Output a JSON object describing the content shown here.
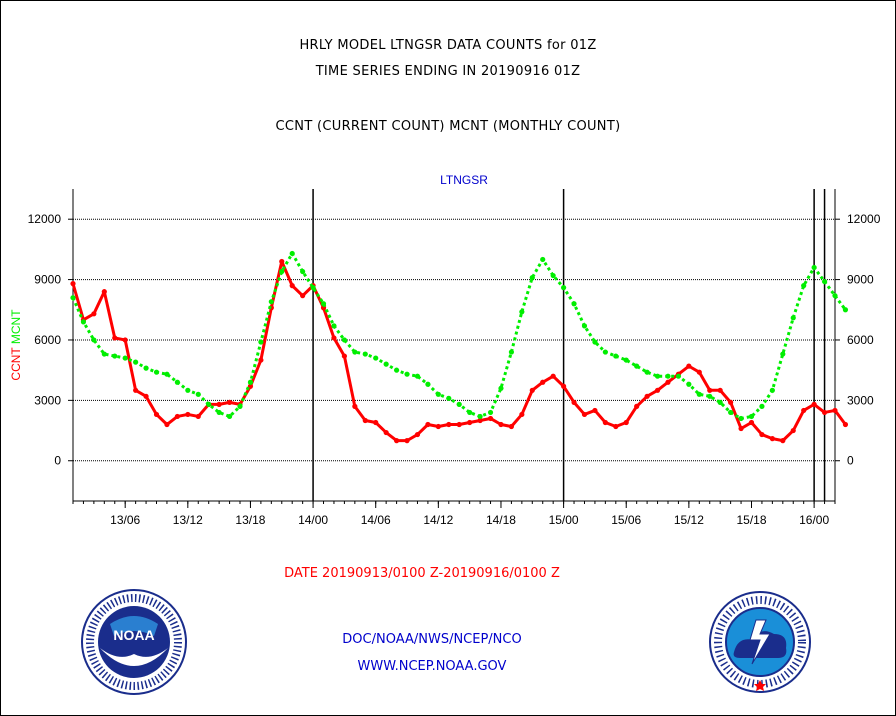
{
  "header": {
    "title_line1": "HRLY MODEL LTNGSR DATA COUNTS for 01Z",
    "title_line2": "TIME SERIES ENDING IN 20190916 01Z",
    "title_line3": "CCNT (CURRENT COUNT) MCNT (MONTHLY COUNT)"
  },
  "footer": {
    "date_range": "DATE 20190913/0100 Z-20190916/0100 Z",
    "credit": "DOC/NOAA/NWS/NCEP/NCO",
    "url": "WWW.NCEP.NOAA.GOV"
  },
  "logos": {
    "left": "noaa-emblem",
    "right": "national-weather-service-emblem"
  },
  "chart_data": {
    "type": "line",
    "title": "LTNGSR",
    "ylabel_left_ccnt": "CCNT",
    "ylabel_left_mcnt": "MCNT",
    "ylim": [
      -2000,
      13500
    ],
    "xlim_hours": [
      0,
      73
    ],
    "yticks": [
      0,
      3000,
      6000,
      9000,
      12000
    ],
    "ytick_labels": [
      "0",
      "3000",
      "6000",
      "9000",
      "12000"
    ],
    "xticks": [
      {
        "hour": 5,
        "label": "13/06"
      },
      {
        "hour": 11,
        "label": "13/12"
      },
      {
        "hour": 17,
        "label": "13/18"
      },
      {
        "hour": 23,
        "label": "14/00"
      },
      {
        "hour": 29,
        "label": "14/06"
      },
      {
        "hour": 35,
        "label": "14/12"
      },
      {
        "hour": 41,
        "label": "14/18"
      },
      {
        "hour": 47,
        "label": "15/00"
      },
      {
        "hour": 53,
        "label": "15/06"
      },
      {
        "hour": 59,
        "label": "15/12"
      },
      {
        "hour": 65,
        "label": "15/18"
      },
      {
        "hour": 71,
        "label": "16/00"
      }
    ],
    "day_boundaries_hours": [
      23,
      47,
      71,
      72
    ],
    "grid": true,
    "colors": {
      "ccnt": "#ff0000",
      "mcnt": "#00ee00",
      "title": "#0000cc",
      "axis": "#000000"
    },
    "series": [
      {
        "name": "CCNT",
        "style": "solid",
        "values": [
          8800,
          7000,
          7300,
          8400,
          6100,
          6000,
          3500,
          3200,
          2300,
          1800,
          2200,
          2300,
          2200,
          2800,
          2800,
          2900,
          2800,
          3700,
          5000,
          7600,
          9900,
          8700,
          8200,
          8700,
          7600,
          6100,
          5200,
          2700,
          2000,
          1900,
          1400,
          1000,
          1000,
          1300,
          1800,
          1700,
          1800,
          1800,
          1900,
          2000,
          2100,
          1800,
          1700,
          2300,
          3500,
          3900,
          4200,
          3700,
          2900,
          2300,
          2500,
          1900,
          1700,
          1900,
          2700,
          3200,
          3500,
          3900,
          4300,
          4700,
          4400,
          3500,
          3500,
          2900,
          1600,
          1900,
          1300,
          1100,
          1000,
          1500,
          2500,
          2800,
          2400,
          2500,
          1800
        ]
      },
      {
        "name": "MCNT",
        "style": "dotted",
        "values": [
          8100,
          6900,
          6000,
          5300,
          5200,
          5100,
          4900,
          4600,
          4400,
          4300,
          3900,
          3500,
          3300,
          2800,
          2400,
          2200,
          2700,
          3900,
          5900,
          7900,
          9400,
          10300,
          9400,
          8600,
          7800,
          6700,
          6000,
          5400,
          5300,
          5100,
          4800,
          4500,
          4300,
          4200,
          3800,
          3300,
          3100,
          2800,
          2400,
          2200,
          2400,
          3600,
          5400,
          7400,
          9100,
          10000,
          9200,
          8600,
          7800,
          6700,
          5900,
          5400,
          5200,
          5000,
          4700,
          4400,
          4200,
          4200,
          4200,
          3800,
          3300,
          3200,
          2900,
          2400,
          2100,
          2200,
          2700,
          3500,
          5300,
          7100,
          8700,
          9600,
          8900,
          8200,
          7500
        ]
      }
    ]
  }
}
